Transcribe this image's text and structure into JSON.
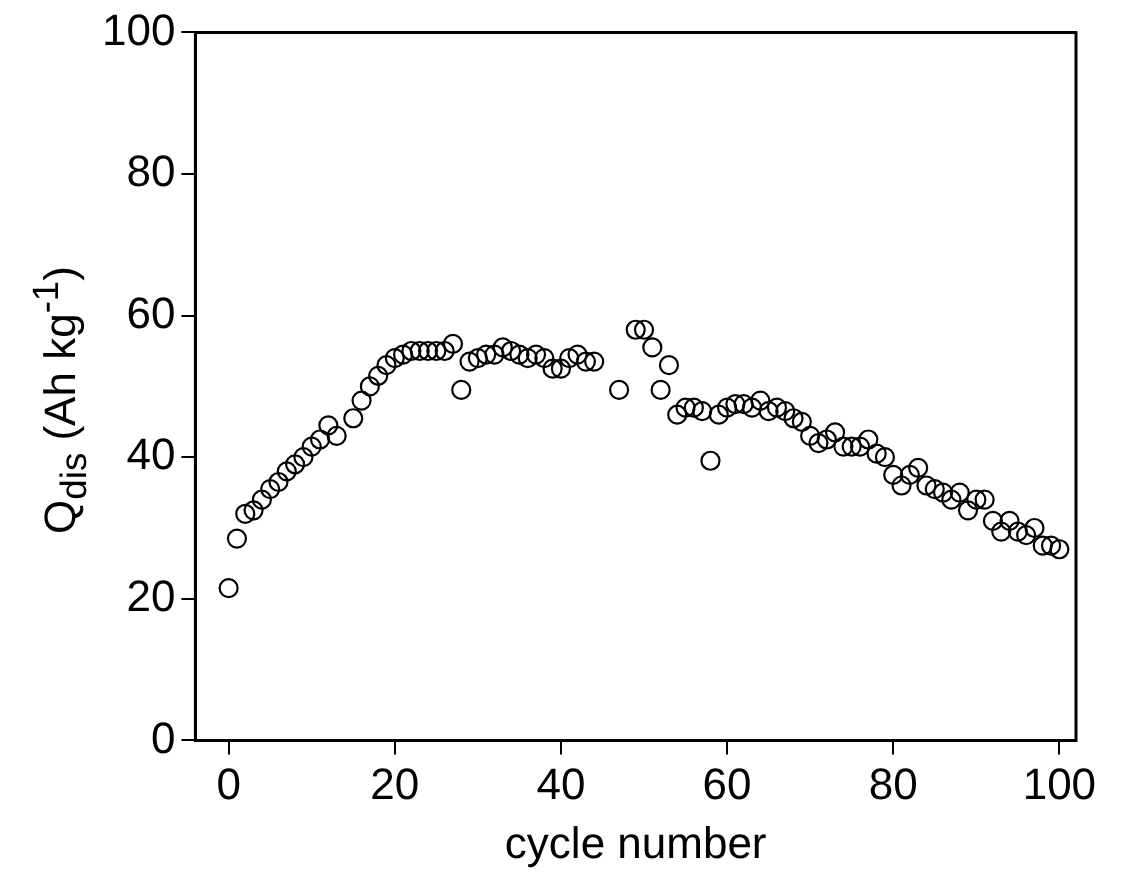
{
  "chart_data": {
    "type": "scatter",
    "xlabel": "cycle number",
    "ylabel": "Q$_{dis}$ (Ah kg$^{-1}$)",
    "xlim": [
      -4,
      102
    ],
    "ylim": [
      0,
      100
    ],
    "xticks": [
      0,
      20,
      40,
      60,
      80,
      100
    ],
    "yticks": [
      0,
      20,
      40,
      60,
      80,
      100
    ],
    "grid": false,
    "legend": false,
    "marker": "circle",
    "series": [
      {
        "color": "#000000",
        "x": [
          0,
          1,
          2,
          3,
          4,
          5,
          6,
          7,
          8,
          9,
          10,
          11,
          12,
          13,
          15,
          16,
          17,
          18,
          19,
          20,
          21,
          22,
          23,
          24,
          25,
          26,
          27,
          28,
          29,
          30,
          31,
          32,
          33,
          34,
          35,
          36,
          37,
          38,
          39,
          40,
          41,
          42,
          43,
          44,
          47,
          49,
          50,
          51,
          52,
          53,
          54,
          55,
          56,
          57,
          58,
          59,
          60,
          61,
          62,
          63,
          64,
          65,
          66,
          67,
          68,
          69,
          70,
          71,
          72,
          73,
          74,
          75,
          76,
          77,
          78,
          79,
          80,
          81,
          82,
          83,
          84,
          85,
          86,
          87,
          88,
          89,
          90,
          91,
          92,
          93,
          94,
          95,
          96,
          97,
          98,
          99,
          100
        ],
        "values": [
          21.5,
          28.5,
          32,
          32.5,
          34,
          35.5,
          36.5,
          38,
          39,
          40,
          41.5,
          42.5,
          44.5,
          43,
          45.5,
          48,
          50,
          51.5,
          53,
          54,
          54.5,
          55,
          55,
          55,
          55,
          55,
          56,
          49.5,
          53.5,
          54,
          54.5,
          54.5,
          55.5,
          55,
          54.5,
          54,
          54.5,
          54,
          52.5,
          52.5,
          54,
          54.5,
          53.5,
          53.5,
          49.5,
          58,
          58,
          55.5,
          49.5,
          53,
          46,
          47,
          47,
          46.5,
          39.5,
          46,
          47,
          47.5,
          47.5,
          47,
          48,
          46.5,
          47,
          46.5,
          45.5,
          45,
          43,
          42,
          42.5,
          43.5,
          41.5,
          41.5,
          41.5,
          42.5,
          40.5,
          40,
          37.5,
          36,
          37.5,
          38.5,
          36,
          35.5,
          35,
          34,
          35,
          32.5,
          34,
          34,
          31,
          29.5,
          31,
          29.5,
          29,
          30,
          27.5,
          27.5,
          27
        ]
      }
    ]
  }
}
